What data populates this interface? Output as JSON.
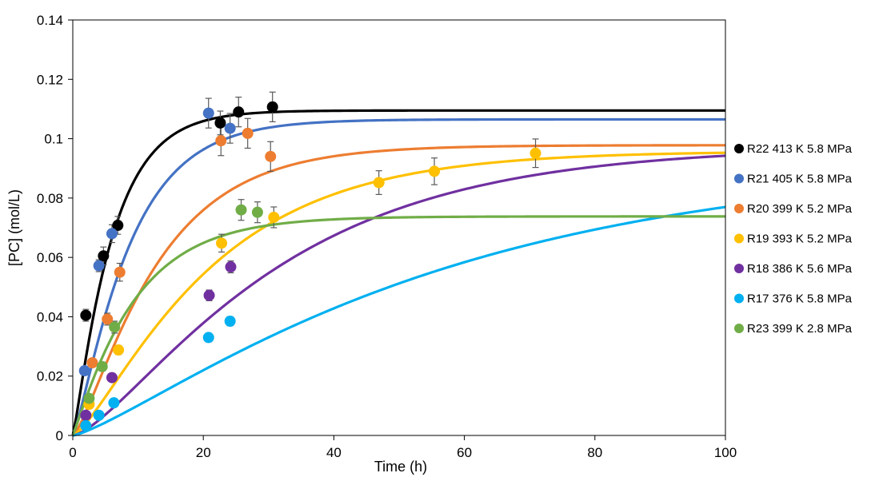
{
  "chart_data": {
    "type": "scatter",
    "xlabel": "Time (h)",
    "ylabel": "[PC] (mol/L)",
    "xlim": [
      0,
      100
    ],
    "ylim": [
      0,
      0.14
    ],
    "x_ticks": [
      0,
      20,
      40,
      60,
      80,
      100
    ],
    "y_ticks": [
      0,
      0.02,
      0.04,
      0.06,
      0.08,
      0.1,
      0.12,
      0.14
    ],
    "x_tick_labels": [
      "0",
      "20",
      "40",
      "60",
      "80",
      "100"
    ],
    "y_tick_labels": [
      "0",
      "0.02",
      "0.04",
      "0.06",
      "0.08",
      "0.1",
      "0.12",
      "0.14"
    ],
    "grid": false,
    "legend_position": "right",
    "series": [
      {
        "name": "R22 413 K 5.8 MPa",
        "color": "#000000",
        "points": [
          [
            2,
            0.0405
          ],
          [
            4.7,
            0.0605
          ],
          [
            6.9,
            0.0708
          ],
          [
            22.6,
            0.1053
          ],
          [
            25.4,
            0.109
          ],
          [
            30.6,
            0.1107
          ]
        ],
        "errors": [
          0.002,
          0.003,
          0.003,
          0.004,
          0.005,
          0.005
        ],
        "fit_plateau": 0.1095,
        "fit_rate": 0.18,
        "fit_power": 1.2
      },
      {
        "name": "R21 405 K 5.8 MPa",
        "color": "#4472C4",
        "points": [
          [
            1.8,
            0.0218
          ],
          [
            4.0,
            0.0572
          ],
          [
            6.0,
            0.068
          ],
          [
            20.8,
            0.1086
          ],
          [
            24.1,
            0.1035
          ]
        ],
        "errors": [
          0.001,
          0.002,
          0.003,
          0.005,
          0.005
        ],
        "fit_plateau": 0.1065,
        "fit_rate": 0.13,
        "fit_power": 1.3
      },
      {
        "name": "R20 399 K 5.2 MPa",
        "color": "#ED7D31",
        "points": [
          [
            3.0,
            0.0245
          ],
          [
            5.3,
            0.0392
          ],
          [
            7.2,
            0.055
          ],
          [
            22.7,
            0.0993
          ],
          [
            26.8,
            0.1018
          ],
          [
            30.3,
            0.094
          ]
        ],
        "errors": [
          0.001,
          0.002,
          0.003,
          0.005,
          0.005,
          0.005
        ],
        "fit_plateau": 0.0978,
        "fit_rate": 0.09,
        "fit_power": 1.4
      },
      {
        "name": "R19 393 K 5.2 MPa",
        "color": "#FFC000",
        "points": [
          [
            2.5,
            0.0105
          ],
          [
            7.0,
            0.0288
          ],
          [
            22.8,
            0.0648
          ],
          [
            30.8,
            0.0735
          ],
          [
            46.9,
            0.0852
          ],
          [
            55.4,
            0.089
          ],
          [
            70.9,
            0.0951
          ]
        ],
        "errors": [
          0.001,
          0.0015,
          0.003,
          0.0035,
          0.004,
          0.0045,
          0.0048
        ],
        "fit_plateau": 0.0958,
        "fit_rate": 0.055,
        "fit_power": 1.4
      },
      {
        "name": "R18 386 K 5.6 MPa",
        "color": "#7030A0",
        "points": [
          [
            2.0,
            0.0068
          ],
          [
            6.0,
            0.0195
          ],
          [
            20.9,
            0.0472
          ],
          [
            24.2,
            0.0568
          ]
        ],
        "errors": [
          0.001,
          0.001,
          0.0018,
          0.002
        ],
        "fit_plateau": 0.0975,
        "fit_rate": 0.038,
        "fit_power": 1.5
      },
      {
        "name": "R17 376 K 5.8 MPa",
        "color": "#00B0F0",
        "points": [
          [
            2.0,
            0.0033
          ],
          [
            4.0,
            0.0068
          ],
          [
            6.3,
            0.011
          ],
          [
            20.8,
            0.033
          ],
          [
            24.1,
            0.0385
          ]
        ],
        "errors": [
          0.0005,
          0.0008,
          0.001,
          0.0012,
          0.0015
        ],
        "fit_plateau": 0.093,
        "fit_rate": 0.02,
        "fit_power": 1.3
      },
      {
        "name": "R23 399 K 2.8 MPa",
        "color": "#70AD47",
        "points": [
          [
            2.5,
            0.0125
          ],
          [
            4.5,
            0.0232
          ],
          [
            6.4,
            0.0365
          ],
          [
            25.8,
            0.076
          ],
          [
            28.3,
            0.0752
          ]
        ],
        "errors": [
          0.001,
          0.0015,
          0.002,
          0.0035,
          0.0035
        ],
        "fit_plateau": 0.0738,
        "fit_rate": 0.11,
        "fit_power": 1.1
      }
    ]
  }
}
